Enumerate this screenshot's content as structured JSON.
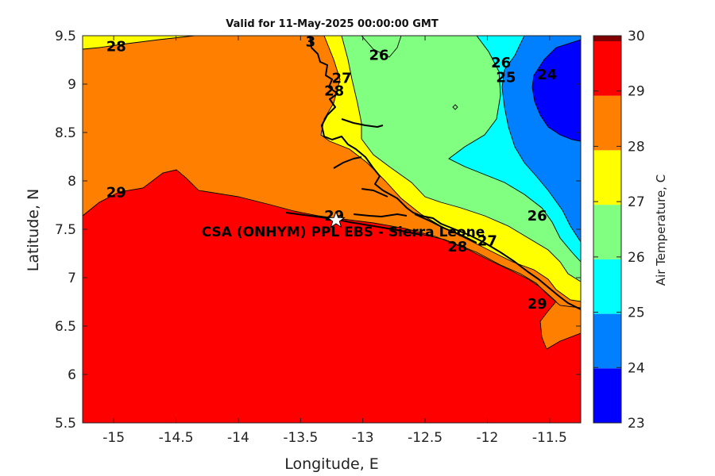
{
  "title": "Valid for 11-May-2025 00:00:00 GMT",
  "xlabel": "Longitude, E",
  "ylabel": "Latitude, N",
  "colorbar_label": "Air Temperature, C",
  "site_label": "CSA (ONHYM) PPL EBS  - Sierra Leone",
  "site_marker": "star-marker",
  "chart_data": {
    "type": "heatmap",
    "title": "Valid for 11-May-2025 00:00:00 GMT",
    "xlabel": "Longitude, E",
    "ylabel": "Latitude, N",
    "xlim": [
      -15.25,
      -11.25
    ],
    "ylim": [
      5.5,
      9.5
    ],
    "x_ticks": [
      -15,
      -14.5,
      -14,
      -13.5,
      -13,
      -12.5,
      -12,
      -11.5
    ],
    "y_ticks": [
      5.5,
      6,
      6.5,
      7,
      7.5,
      8,
      8.5,
      9,
      9.5
    ],
    "x_tick_labels": [
      "-15",
      "-14.5",
      "-14",
      "-13.5",
      "-13",
      "-12.5",
      "-12",
      "-11.5"
    ],
    "y_tick_labels": [
      "5.5",
      "6",
      "6.5",
      "7",
      "7.5",
      "8",
      "8.5",
      "9",
      "9.5"
    ],
    "colorbar": {
      "label": "Air Temperature, C",
      "levels": [
        23,
        24,
        25,
        26,
        27,
        28,
        29,
        30
      ],
      "tick_labels": [
        "23",
        "24",
        "25",
        "26",
        "27",
        "28",
        "29",
        "30"
      ],
      "colors": [
        "#0000ff",
        "#0080ff",
        "#00ffff",
        "#80ff80",
        "#ffff00",
        "#ff8000",
        "#ff0000",
        "#800000"
      ]
    },
    "contour_labels": [
      {
        "text": "28",
        "lon": -14.98,
        "lat": 9.39
      },
      {
        "text": "26",
        "lon": -12.87,
        "lat": 9.3
      },
      {
        "text": "26",
        "lon": -11.89,
        "lat": 9.22
      },
      {
        "text": "25",
        "lon": -11.85,
        "lat": 9.07
      },
      {
        "text": "24",
        "lon": -11.52,
        "lat": 9.1
      },
      {
        "text": "27",
        "lon": -13.17,
        "lat": 9.06
      },
      {
        "text": "28",
        "lon": -13.23,
        "lat": 8.93
      },
      {
        "text": "29",
        "lon": -14.98,
        "lat": 7.88
      },
      {
        "text": "29",
        "lon": -13.23,
        "lat": 7.64
      },
      {
        "text": "26",
        "lon": -11.6,
        "lat": 7.64
      },
      {
        "text": "28",
        "lon": -12.24,
        "lat": 7.32
      },
      {
        "text": "27",
        "lon": -12.0,
        "lat": 7.38
      },
      {
        "text": "29",
        "lon": -11.6,
        "lat": 6.73
      },
      {
        "text": "3",
        "lon": -13.42,
        "lat": 9.44
      }
    ],
    "site": {
      "name": "CSA (ONHYM) PPL EBS  - Sierra Leone",
      "lon": -13.23,
      "lat": 7.62
    }
  }
}
